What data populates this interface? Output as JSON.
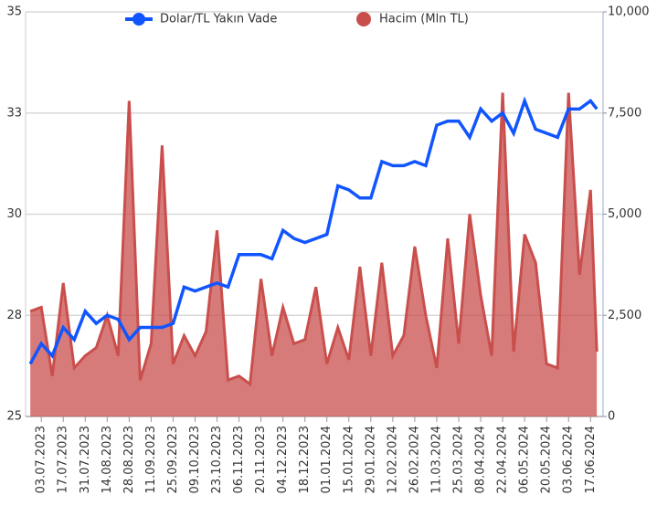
{
  "chart_data": {
    "type": "line-area",
    "x": [
      "26.06.2023",
      "03.07.2023",
      "10.07.2023",
      "17.07.2023",
      "24.07.2023",
      "31.07.2023",
      "07.08.2023",
      "14.08.2023",
      "21.08.2023",
      "28.08.2023",
      "04.09.2023",
      "11.09.2023",
      "18.09.2023",
      "25.09.2023",
      "02.10.2023",
      "09.10.2023",
      "16.10.2023",
      "23.10.2023",
      "30.10.2023",
      "06.11.2023",
      "13.11.2023",
      "20.11.2023",
      "27.11.2023",
      "04.12.2023",
      "11.12.2023",
      "18.12.2023",
      "25.12.2023",
      "01.01.2024",
      "08.01.2024",
      "15.01.2024",
      "22.01.2024",
      "29.01.2024",
      "05.02.2024",
      "12.02.2024",
      "19.02.2024",
      "26.02.2024",
      "04.03.2024",
      "11.03.2024",
      "18.03.2024",
      "25.03.2024",
      "01.04.2024",
      "08.04.2024",
      "15.04.2024",
      "22.04.2024",
      "29.04.2024",
      "06.05.2024",
      "13.05.2024",
      "20.05.2024",
      "27.05.2024",
      "03.06.2024",
      "10.06.2024",
      "17.06.2024",
      "21.06.2024"
    ],
    "series": [
      {
        "name": "Dolar/TL Yakın Vade",
        "color": "#1155ff",
        "kind": "line",
        "values": [
          26.3,
          26.8,
          26.5,
          27.2,
          26.9,
          27.6,
          27.3,
          27.5,
          27.4,
          26.9,
          27.2,
          27.2,
          27.2,
          27.3,
          28.2,
          28.1,
          28.2,
          28.3,
          28.2,
          29.0,
          29.0,
          29.0,
          28.9,
          29.6,
          29.4,
          29.3,
          29.4,
          29.5,
          30.7,
          30.6,
          30.4,
          30.4,
          31.3,
          31.2,
          31.2,
          31.3,
          31.2,
          32.2,
          32.3,
          32.3,
          31.9,
          32.6,
          32.3,
          32.5,
          32.0,
          32.8,
          32.1,
          32.0,
          31.9,
          32.6,
          32.6,
          32.8,
          32.6
        ]
      },
      {
        "name": "Hacim (Mln TL)",
        "color": "#c94f4d",
        "kind": "area",
        "axis": "y2",
        "values": [
          2600,
          2700,
          1000,
          3300,
          1200,
          1500,
          1700,
          2500,
          1500,
          7800,
          900,
          1800,
          6700,
          1300,
          2000,
          1500,
          2100,
          4600,
          900,
          1000,
          800,
          3400,
          1500,
          2700,
          1800,
          1900,
          3200,
          1300,
          2200,
          1400,
          3700,
          1500,
          3800,
          1500,
          2000,
          4200,
          2500,
          1200,
          4400,
          1800,
          5000,
          3000,
          1500,
          8000,
          1600,
          4500,
          3800,
          1300,
          1200,
          8000,
          3500,
          5600,
          1600
        ]
      }
    ],
    "xlim": [
      "23.06.2023",
      "25.06.2024"
    ],
    "xticks": [
      "03.07.2023",
      "17.07.2023",
      "31.07.2023",
      "14.08.2023",
      "28.08.2023",
      "11.09.2023",
      "25.09.2023",
      "09.10.2023",
      "23.10.2023",
      "06.11.2023",
      "20.11.2023",
      "04.12.2023",
      "18.12.2023",
      "01.01.2024",
      "15.01.2024",
      "29.01.2024",
      "12.02.2024",
      "26.02.2024",
      "11.03.2024",
      "25.03.2024",
      "08.04.2024",
      "22.04.2024",
      "06.05.2024",
      "20.05.2024",
      "03.06.2024",
      "17.06.2024"
    ],
    "ylim": [
      25,
      35
    ],
    "yticks": [
      25,
      {
        "value": 27.5,
        "label": "28"
      },
      30,
      {
        "value": 32.5,
        "label": "33"
      },
      35
    ],
    "y2lim": [
      0,
      10000
    ],
    "y2ticks": [
      0,
      {
        "value": 2500,
        "label": "2,500"
      },
      {
        "value": 5000,
        "label": "5,000"
      },
      {
        "value": 7500,
        "label": "7,500"
      },
      {
        "value": 10000,
        "label": "10,000"
      }
    ],
    "grid": true
  }
}
